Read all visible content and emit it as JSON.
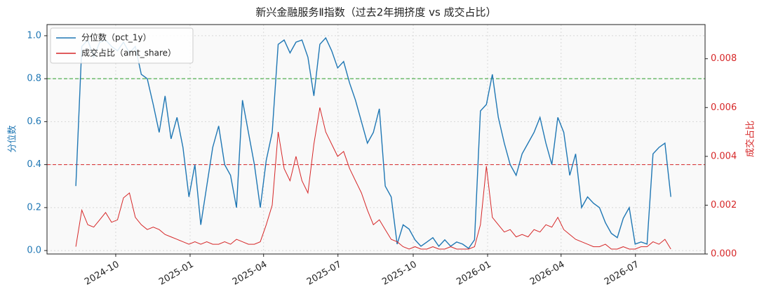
{
  "chart_data": {
    "type": "line",
    "title": "新兴金融服务Ⅱ指数（过去2年拥挤度 vs 成交占比）",
    "y_label": "分位数",
    "y2_label": "成交占比",
    "grid": true,
    "legend": "upper left",
    "x": [
      2024.616,
      2024.636,
      2024.656,
      2024.676,
      2024.696,
      2024.716,
      2024.736,
      2024.756,
      2024.776,
      2024.796,
      2024.816,
      2024.836,
      2024.856,
      2024.876,
      2024.896,
      2024.916,
      2024.936,
      2024.956,
      2024.976,
      2024.996,
      2025.016,
      2025.036,
      2025.056,
      2025.076,
      2025.096,
      2025.116,
      2025.136,
      2025.156,
      2025.176,
      2025.196,
      2025.216,
      2025.236,
      2025.256,
      2025.276,
      2025.296,
      2025.316,
      2025.336,
      2025.356,
      2025.376,
      2025.396,
      2025.416,
      2025.436,
      2025.456,
      2025.476,
      2025.496,
      2025.516,
      2025.536,
      2025.556,
      2025.576,
      2025.596,
      2025.616,
      2025.636,
      2025.656,
      2025.676,
      2025.696,
      2025.716,
      2025.736,
      2025.756,
      2025.776,
      2025.796,
      2025.816,
      2025.836,
      2025.856,
      2025.876,
      2025.896,
      2025.916,
      2025.936,
      2025.956,
      2025.976,
      2025.996,
      2026.016,
      2026.036,
      2026.056,
      2026.076,
      2026.096,
      2026.116,
      2026.136,
      2026.156,
      2026.176,
      2026.196,
      2026.216,
      2026.236,
      2026.256,
      2026.276,
      2026.296,
      2026.316,
      2026.336,
      2026.356,
      2026.376,
      2026.396,
      2026.416,
      2026.436,
      2026.456,
      2026.476,
      2026.496,
      2026.516,
      2026.536,
      2026.556,
      2026.576,
      2026.596,
      2026.616
    ],
    "series": [
      {
        "name": "分位数（pct_1y）",
        "color": "#1f77b4",
        "axis": "y",
        "values": [
          0.3,
          0.95,
          0.98,
          0.9,
          0.97,
          0.98,
          0.95,
          0.93,
          0.97,
          0.92,
          0.95,
          0.82,
          0.8,
          0.68,
          0.55,
          0.72,
          0.52,
          0.62,
          0.48,
          0.25,
          0.4,
          0.12,
          0.3,
          0.48,
          0.58,
          0.4,
          0.35,
          0.2,
          0.7,
          0.55,
          0.4,
          0.2,
          0.42,
          0.55,
          0.96,
          0.98,
          0.92,
          0.97,
          0.98,
          0.9,
          0.72,
          0.96,
          0.99,
          0.93,
          0.85,
          0.88,
          0.78,
          0.7,
          0.6,
          0.5,
          0.55,
          0.66,
          0.3,
          0.25,
          0.03,
          0.12,
          0.1,
          0.05,
          0.02,
          0.04,
          0.06,
          0.02,
          0.05,
          0.02,
          0.04,
          0.03,
          0.01,
          0.05,
          0.65,
          0.68,
          0.82,
          0.62,
          0.5,
          0.4,
          0.35,
          0.45,
          0.5,
          0.55,
          0.62,
          0.5,
          0.4,
          0.62,
          0.55,
          0.35,
          0.45,
          0.2,
          0.25,
          0.22,
          0.2,
          0.13,
          0.08,
          0.06,
          0.15,
          0.2,
          0.03,
          0.04,
          0.03,
          0.45,
          0.48,
          0.5,
          0.25
        ]
      },
      {
        "name": "成交占比（amt_share）",
        "color": "#d62728",
        "axis": "y2",
        "values": [
          0.0003,
          0.0018,
          0.0012,
          0.0011,
          0.0014,
          0.0017,
          0.0013,
          0.0014,
          0.0023,
          0.0025,
          0.0015,
          0.0012,
          0.001,
          0.0011,
          0.001,
          0.0008,
          0.0007,
          0.0006,
          0.0005,
          0.0004,
          0.0005,
          0.0004,
          0.0005,
          0.0004,
          0.0004,
          0.0005,
          0.0004,
          0.0006,
          0.0005,
          0.0004,
          0.0004,
          0.0005,
          0.0012,
          0.002,
          0.005,
          0.0035,
          0.003,
          0.004,
          0.003,
          0.0025,
          0.0045,
          0.006,
          0.005,
          0.0045,
          0.004,
          0.0042,
          0.0035,
          0.003,
          0.0025,
          0.0018,
          0.0012,
          0.0014,
          0.001,
          0.0006,
          0.0005,
          0.0003,
          0.0002,
          0.0003,
          0.0002,
          0.0002,
          0.0003,
          0.0002,
          0.0002,
          0.0003,
          0.0002,
          0.0002,
          0.0002,
          0.0003,
          0.0012,
          0.0036,
          0.0015,
          0.0012,
          0.0009,
          0.001,
          0.0007,
          0.0008,
          0.0007,
          0.001,
          0.0009,
          0.0012,
          0.0011,
          0.0015,
          0.001,
          0.0008,
          0.0006,
          0.0005,
          0.0004,
          0.0003,
          0.0003,
          0.0004,
          0.0002,
          0.0002,
          0.0003,
          0.0002,
          0.0002,
          0.0003,
          0.0003,
          0.0005,
          0.0004,
          0.0006,
          0.0002
        ]
      }
    ],
    "hlines": [
      {
        "value": 0.8,
        "color": "#2ca02c"
      },
      {
        "value": 0.4,
        "color": "#d62728"
      }
    ],
    "xlim": [
      2024.519,
      2026.731
    ],
    "xticks": [
      {
        "value": 2024.75,
        "label": "2024-10"
      },
      {
        "value": 2025.0,
        "label": "2025-01"
      },
      {
        "value": 2025.247,
        "label": "2025-04"
      },
      {
        "value": 2025.497,
        "label": "2025-07"
      },
      {
        "value": 2025.75,
        "label": "2025-10"
      },
      {
        "value": 2026.0,
        "label": "2026-01"
      },
      {
        "value": 2026.247,
        "label": "2026-04"
      },
      {
        "value": 2026.497,
        "label": "2026-07"
      }
    ],
    "ylim": [
      -0.016,
      1.052
    ],
    "yticks": [
      {
        "value": 0,
        "label": "0.0"
      },
      0.2,
      0.4,
      0.6,
      0.8,
      {
        "value": 1,
        "label": "1.0"
      }
    ],
    "y2lim": [
      0,
      0.0094
    ],
    "y2ticks": [
      {
        "value": 0,
        "label": "0.000"
      },
      {
        "value": 0.002,
        "label": "0.002"
      },
      {
        "value": 0.004,
        "label": "0.004"
      },
      {
        "value": 0.006,
        "label": "0.006"
      },
      {
        "value": 0.008,
        "label": "0.008"
      }
    ]
  }
}
